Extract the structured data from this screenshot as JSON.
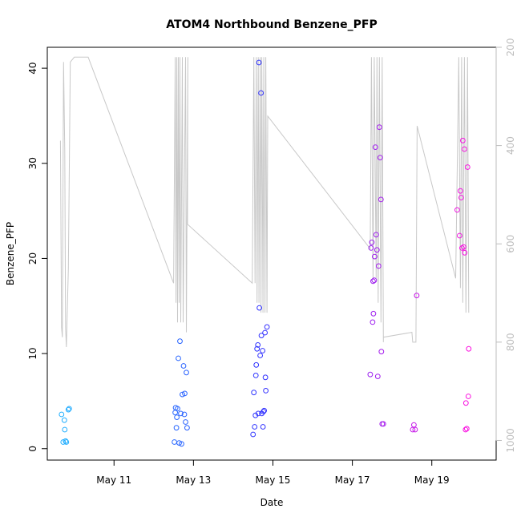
{
  "chart_data": {
    "type": "scatter",
    "title": "ATOM4 Northbound Benzene_PFP",
    "xlabel": "Date",
    "ylabel": "Benzene_PFP",
    "xlim": [
      9.32,
      20.62
    ],
    "ylim": [
      -1.2,
      42.2
    ],
    "x_ticks": [
      {
        "value": 11,
        "label": "May 11"
      },
      {
        "value": 13,
        "label": "May 13"
      },
      {
        "value": 15,
        "label": "May 15"
      },
      {
        "value": 17,
        "label": "May 17"
      },
      {
        "value": 19,
        "label": "May 19"
      }
    ],
    "y_ticks": [
      0,
      10,
      20,
      30,
      40
    ],
    "y2_axis": {
      "label": "",
      "reversed": true,
      "lim": [
        200,
        1040
      ],
      "ticks": [
        200,
        400,
        600,
        800,
        1000
      ],
      "color": "#bdbdbd"
    },
    "color_ramp": {
      "start": "#1eb4ff",
      "mid": "#3030ff",
      "end": "#ff10e0",
      "t_start": 9.5,
      "t_end": 20.0
    },
    "points": [
      [
        9.68,
        3.6
      ],
      [
        9.72,
        0.7
      ],
      [
        9.75,
        3.0
      ],
      [
        9.76,
        2.0
      ],
      [
        9.78,
        0.8
      ],
      [
        9.8,
        0.7
      ],
      [
        9.85,
        4.1
      ],
      [
        9.87,
        4.2
      ],
      [
        12.52,
        0.7
      ],
      [
        12.54,
        3.8
      ],
      [
        12.55,
        4.3
      ],
      [
        12.57,
        2.2
      ],
      [
        12.58,
        3.3
      ],
      [
        12.6,
        4.2
      ],
      [
        12.62,
        9.5
      ],
      [
        12.64,
        0.6
      ],
      [
        12.66,
        11.3
      ],
      [
        12.68,
        3.7
      ],
      [
        12.7,
        0.5
      ],
      [
        12.72,
        5.7
      ],
      [
        12.75,
        8.7
      ],
      [
        12.77,
        3.6
      ],
      [
        12.78,
        5.8
      ],
      [
        12.8,
        2.8
      ],
      [
        12.82,
        8.0
      ],
      [
        12.84,
        2.2
      ],
      [
        14.5,
        1.5
      ],
      [
        14.52,
        5.9
      ],
      [
        14.54,
        2.3
      ],
      [
        14.56,
        3.5
      ],
      [
        14.57,
        7.7
      ],
      [
        14.58,
        8.8
      ],
      [
        14.6,
        10.5
      ],
      [
        14.62,
        10.9
      ],
      [
        14.63,
        3.7
      ],
      [
        14.65,
        40.6
      ],
      [
        14.66,
        14.8
      ],
      [
        14.68,
        9.8
      ],
      [
        14.7,
        37.4
      ],
      [
        14.71,
        11.9
      ],
      [
        14.72,
        3.7
      ],
      [
        14.74,
        10.3
      ],
      [
        14.75,
        2.3
      ],
      [
        14.76,
        3.9
      ],
      [
        14.78,
        4.0
      ],
      [
        14.8,
        12.2
      ],
      [
        14.81,
        7.5
      ],
      [
        14.82,
        6.1
      ],
      [
        14.85,
        12.8
      ],
      [
        17.45,
        7.8
      ],
      [
        17.47,
        21.1
      ],
      [
        17.49,
        21.7
      ],
      [
        17.51,
        13.3
      ],
      [
        17.52,
        17.6
      ],
      [
        17.53,
        14.2
      ],
      [
        17.55,
        17.7
      ],
      [
        17.56,
        20.2
      ],
      [
        17.58,
        31.7
      ],
      [
        17.6,
        22.5
      ],
      [
        17.62,
        20.9
      ],
      [
        17.64,
        7.6
      ],
      [
        17.66,
        19.2
      ],
      [
        17.68,
        33.8
      ],
      [
        17.7,
        30.6
      ],
      [
        17.72,
        26.2
      ],
      [
        17.73,
        10.2
      ],
      [
        17.75,
        2.6
      ],
      [
        17.78,
        2.6
      ],
      [
        18.52,
        2.0
      ],
      [
        18.55,
        2.5
      ],
      [
        18.58,
        2.0
      ],
      [
        18.62,
        16.1
      ],
      [
        19.64,
        25.1
      ],
      [
        19.7,
        22.4
      ],
      [
        19.72,
        27.1
      ],
      [
        19.74,
        26.4
      ],
      [
        19.76,
        21.1
      ],
      [
        19.78,
        32.4
      ],
      [
        19.8,
        21.2
      ],
      [
        19.82,
        31.5
      ],
      [
        19.83,
        20.6
      ],
      [
        19.85,
        2.0
      ],
      [
        19.86,
        4.8
      ],
      [
        19.88,
        2.1
      ],
      [
        19.9,
        29.6
      ],
      [
        19.92,
        5.5
      ],
      [
        19.93,
        10.5
      ]
    ],
    "altitude_series": [
      [
        9.65,
        390
      ],
      [
        9.68,
        770
      ],
      [
        9.7,
        790
      ],
      [
        9.73,
        230
      ],
      [
        9.76,
        410
      ],
      [
        9.78,
        770
      ],
      [
        9.8,
        810
      ],
      [
        9.85,
        650
      ],
      [
        9.9,
        230
      ],
      [
        10.0,
        220
      ],
      [
        10.03,
        220
      ],
      [
        10.35,
        220
      ],
      [
        12.5,
        680
      ],
      [
        12.54,
        220
      ],
      [
        12.56,
        720
      ],
      [
        12.58,
        220
      ],
      [
        12.6,
        760
      ],
      [
        12.62,
        220
      ],
      [
        12.64,
        720
      ],
      [
        12.66,
        220
      ],
      [
        12.68,
        760
      ],
      [
        12.72,
        220
      ],
      [
        12.74,
        760
      ],
      [
        12.8,
        220
      ],
      [
        12.82,
        780
      ],
      [
        12.86,
        220
      ],
      [
        12.85,
        560
      ],
      [
        14.48,
        680
      ],
      [
        14.52,
        220
      ],
      [
        14.55,
        680
      ],
      [
        14.58,
        220
      ],
      [
        14.6,
        720
      ],
      [
        14.63,
        220
      ],
      [
        14.65,
        720
      ],
      [
        14.68,
        220
      ],
      [
        14.7,
        740
      ],
      [
        14.72,
        220
      ],
      [
        14.75,
        740
      ],
      [
        14.77,
        220
      ],
      [
        14.8,
        740
      ],
      [
        14.82,
        220
      ],
      [
        14.85,
        740
      ],
      [
        14.87,
        340
      ],
      [
        17.45,
        610
      ],
      [
        17.48,
        220
      ],
      [
        17.52,
        670
      ],
      [
        17.55,
        220
      ],
      [
        17.6,
        670
      ],
      [
        17.62,
        220
      ],
      [
        17.65,
        720
      ],
      [
        17.68,
        220
      ],
      [
        17.72,
        760
      ],
      [
        17.75,
        220
      ],
      [
        17.78,
        800
      ],
      [
        17.78,
        790
      ],
      [
        18.5,
        780
      ],
      [
        18.52,
        800
      ],
      [
        18.6,
        800
      ],
      [
        18.63,
        360
      ],
      [
        19.6,
        670
      ],
      [
        19.68,
        220
      ],
      [
        19.72,
        690
      ],
      [
        19.75,
        220
      ],
      [
        19.78,
        720
      ],
      [
        19.82,
        220
      ],
      [
        19.86,
        740
      ],
      [
        19.9,
        220
      ],
      [
        19.93,
        740
      ]
    ]
  }
}
